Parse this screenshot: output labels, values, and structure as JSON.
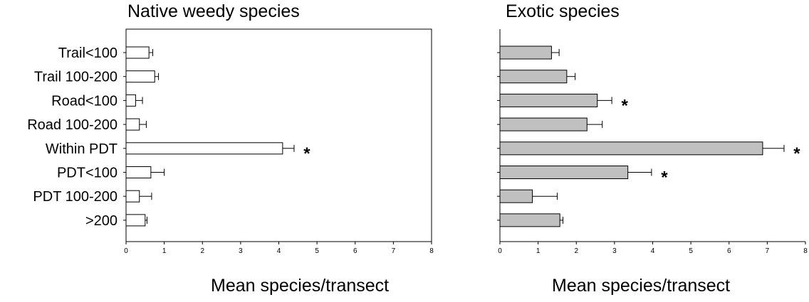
{
  "chart_data": [
    {
      "type": "bar",
      "orientation": "horizontal",
      "title": "Native weedy species",
      "xlabel": "Mean species/transect",
      "ylabel": "",
      "xlim": [
        0,
        8
      ],
      "xticks": [
        "0",
        "1",
        "2",
        "3",
        "4",
        "5",
        "6",
        "7",
        "8"
      ],
      "categories": [
        "Trail<100",
        "Trail 100-200",
        "Road<100",
        "Road 100-200",
        "Within PDT",
        "PDT<100",
        "PDT 100-200",
        ">200"
      ],
      "values": [
        0.6,
        0.75,
        0.25,
        0.35,
        4.1,
        0.65,
        0.35,
        0.5
      ],
      "errors": [
        0.1,
        0.1,
        0.18,
        0.18,
        0.3,
        0.35,
        0.32,
        0.05
      ],
      "significance": [
        "",
        "",
        "",
        "",
        "*",
        "",
        "",
        ""
      ],
      "bar_color": "#ffffff",
      "grid": false
    },
    {
      "type": "bar",
      "orientation": "horizontal",
      "title": "Exotic species",
      "xlabel": "Mean species/transect",
      "ylabel": "",
      "xlim": [
        0,
        8
      ],
      "xticks": [
        "0",
        "1",
        "2",
        "3",
        "4",
        "5",
        "6",
        "7",
        "8"
      ],
      "categories": [
        "Trail<100",
        "Trail 100-200",
        "Road<100",
        "Road 100-200",
        "Within PDT",
        "PDT<100",
        "PDT 100-200",
        ">200"
      ],
      "values": [
        1.35,
        1.75,
        2.55,
        2.28,
        6.88,
        3.35,
        0.85,
        1.57
      ],
      "errors": [
        0.2,
        0.22,
        0.38,
        0.4,
        0.56,
        0.62,
        0.65,
        0.08
      ],
      "significance": [
        "",
        "",
        "*",
        "",
        "*",
        "*",
        "",
        ""
      ],
      "bar_color": "#c0c0c0",
      "grid": false
    }
  ]
}
